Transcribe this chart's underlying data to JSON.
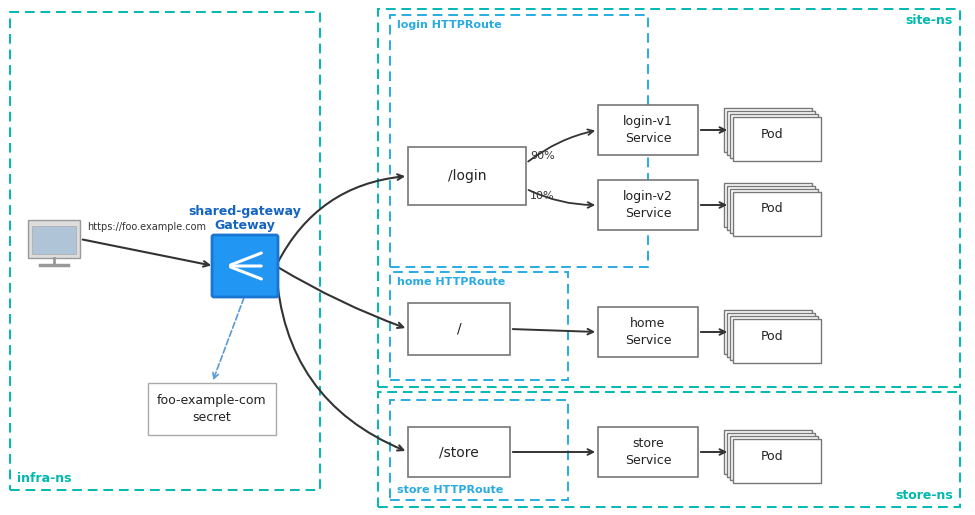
{
  "bg_color": "#ffffff",
  "ns_color_teal": "#00b8b0",
  "ns_color_blue": "#29abe2",
  "gateway_blue": "#2196F3",
  "gateway_dark": "#1976D2",
  "arrow_color": "#333333",
  "box_edge": "#777777",
  "secret_edge": "#999999",
  "percent_90": "90%",
  "percent_10": "10%",
  "url_text": "https://foo.example.com",
  "gateway_label1": "shared-gateway",
  "gateway_label2": "Gateway",
  "secret_label": "foo-example-com\nsecret",
  "login_box": "/login",
  "home_box": "/",
  "store_box": "/store",
  "login_v1_svc": "login-v1\nService",
  "login_v2_svc": "login-v2\nService",
  "home_svc": "home\nService",
  "store_svc": "store\nService",
  "pod_label": "Pod",
  "infra_ns": "infra-ns",
  "site_ns": "site-ns",
  "store_ns": "store-ns",
  "login_route_label": "login HTTPRoute",
  "home_route_label": "home HTTPRoute",
  "store_route_label": "store HTTPRoute"
}
